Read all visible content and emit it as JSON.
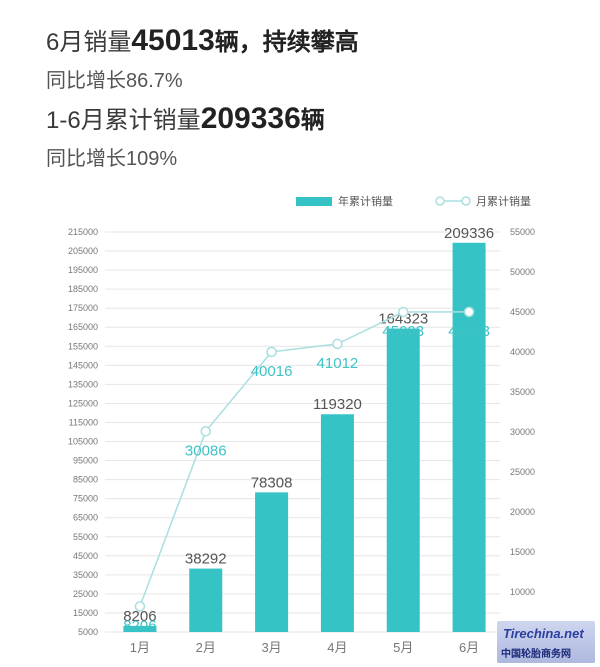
{
  "headline": {
    "line1_pre": "6月销量",
    "line1_num": "45013",
    "line1_unit": "辆，",
    "line1_post": "持续攀高",
    "line2": "同比增长86.7%",
    "line3_pre": "1-6月累计销量",
    "line3_num": "209336",
    "line3_unit": "辆",
    "line4": "同比增长109%"
  },
  "colors": {
    "bar": "#36c3c6",
    "line": "#a9dfe0",
    "line_label": "#3ec3c6",
    "grid": "#e6e6e6"
  },
  "chart_data": {
    "type": "bar",
    "categories": [
      "1月",
      "2月",
      "3月",
      "4月",
      "5月",
      "6月"
    ],
    "series": [
      {
        "name": "年累计销量",
        "type": "bar",
        "axis": "left",
        "values": [
          8206,
          38292,
          78308,
          119320,
          164323,
          209336
        ]
      },
      {
        "name": "月累计销量",
        "type": "line",
        "axis": "right",
        "values": [
          8206,
          30086,
          40016,
          41012,
          45003,
          45013
        ]
      }
    ],
    "left_axis": {
      "ylim": [
        5000,
        215000
      ],
      "ticks": [
        5000,
        15000,
        25000,
        35000,
        45000,
        55000,
        65000,
        75000,
        85000,
        95000,
        105000,
        115000,
        125000,
        135000,
        145000,
        155000,
        165000,
        175000,
        185000,
        195000,
        205000,
        215000
      ]
    },
    "right_axis": {
      "ylim": [
        5000,
        55000
      ],
      "ticks": [
        10000,
        15000,
        20000,
        25000,
        30000,
        35000,
        40000,
        45000,
        50000,
        55000
      ]
    },
    "grid": true,
    "legend": "top-right"
  },
  "watermark": {
    "logo": "Tirechina.net",
    "sub": "中国轮胎商务网"
  }
}
